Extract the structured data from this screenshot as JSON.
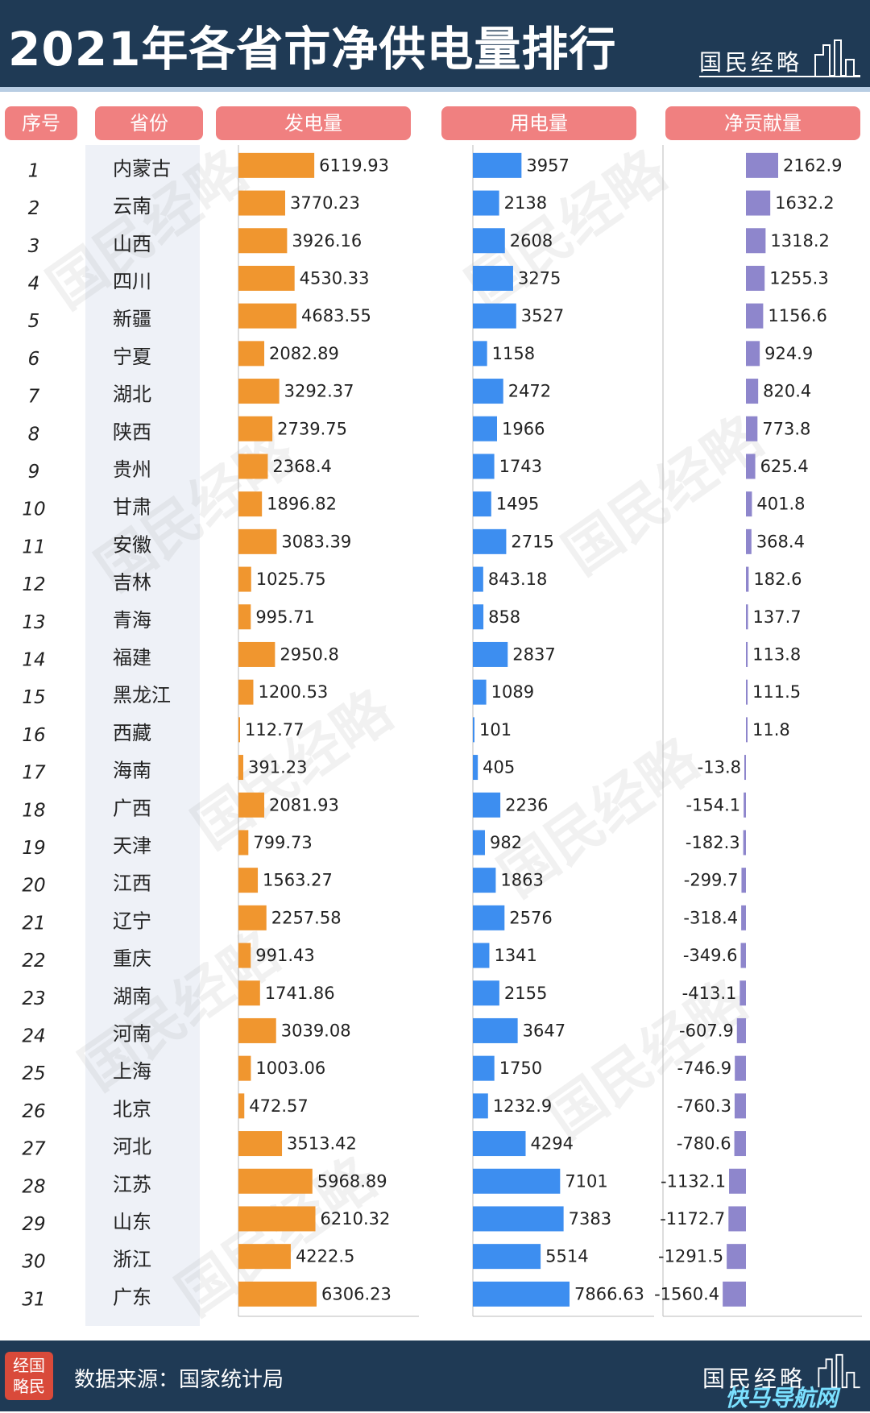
{
  "header": {
    "title": "2021年各省市净供电量排行",
    "brand": "国民经略"
  },
  "columns": {
    "rank": "序号",
    "province": "省份",
    "generation": "发电量",
    "consumption": "用电量",
    "net": "净贡献量"
  },
  "colors": {
    "header_bg": "#1f3a55",
    "column_header": "#f08080",
    "generation": "#f0962f",
    "consumption": "#3d8ef0",
    "net": "#8e86cc"
  },
  "chart_data": {
    "type": "bar",
    "categories": [
      "内蒙古",
      "云南",
      "山西",
      "四川",
      "新疆",
      "宁夏",
      "湖北",
      "陕西",
      "贵州",
      "甘肃",
      "安徽",
      "吉林",
      "青海",
      "福建",
      "黑龙江",
      "西藏",
      "海南",
      "广西",
      "天津",
      "江西",
      "辽宁",
      "重庆",
      "湖南",
      "河南",
      "上海",
      "北京",
      "河北",
      "江苏",
      "山东",
      "浙江",
      "广东"
    ],
    "ranks": [
      1,
      2,
      3,
      4,
      5,
      6,
      7,
      8,
      9,
      10,
      11,
      12,
      13,
      14,
      15,
      16,
      17,
      18,
      19,
      20,
      21,
      22,
      23,
      24,
      25,
      26,
      27,
      28,
      29,
      30,
      31
    ],
    "series": [
      {
        "name": "发电量",
        "values": [
          "6119.93",
          "3770.23",
          "3926.16",
          "4530.33",
          "4683.55",
          "2082.89",
          "3292.37",
          "2739.75",
          "2368.4",
          "1896.82",
          "3083.39",
          "1025.75",
          "995.71",
          "2950.8",
          "1200.53",
          "112.77",
          "391.23",
          "2081.93",
          "799.73",
          "1563.27",
          "2257.58",
          "991.43",
          "1741.86",
          "3039.08",
          "1003.06",
          "472.57",
          "3513.42",
          "5968.89",
          "6210.32",
          "4222.5",
          "6306.23"
        ]
      },
      {
        "name": "用电量",
        "values": [
          "3957",
          "2138",
          "2608",
          "3275",
          "3527",
          "1158",
          "2472",
          "1966",
          "1743",
          "1495",
          "2715",
          "843.18",
          "858",
          "2837",
          "1089",
          "101",
          "405",
          "2236",
          "982",
          "1863",
          "2576",
          "1341",
          "2155",
          "3647",
          "1750",
          "1232.9",
          "4294",
          "7101",
          "7383",
          "5514",
          "7866.63"
        ]
      },
      {
        "name": "净贡献量",
        "values": [
          "2162.9",
          "1632.2",
          "1318.2",
          "1255.3",
          "1156.6",
          "924.9",
          "820.4",
          "773.8",
          "625.4",
          "401.8",
          "368.4",
          "182.6",
          "137.7",
          "113.8",
          "111.5",
          "11.8",
          "-13.8",
          "-154.1",
          "-182.3",
          "-299.7",
          "-318.4",
          "-349.6",
          "-413.1",
          "-607.9",
          "-746.9",
          "-760.3",
          "-780.6",
          "-1132.1",
          "-1172.7",
          "-1291.5",
          "-1560.4"
        ]
      }
    ]
  },
  "watermark": "国民经略",
  "footer": {
    "logo_line1": "经国",
    "logo_line2": "略民",
    "source": "数据来源：国家统计局",
    "brand": "国民经略",
    "site": "快马导航网"
  }
}
